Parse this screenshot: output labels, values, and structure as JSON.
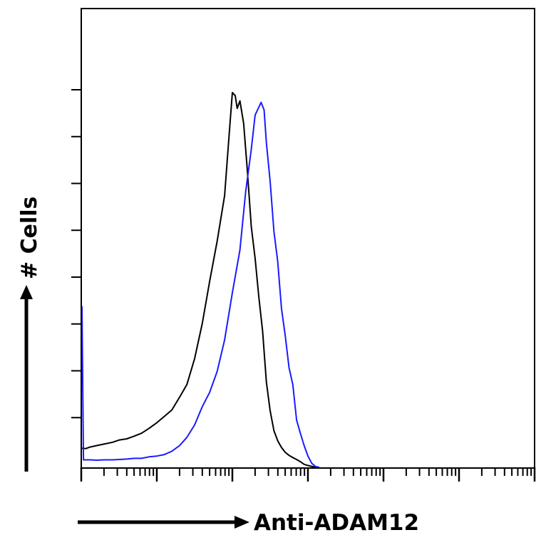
{
  "chart_data": {
    "type": "line",
    "title": "",
    "xlabel": "Anti-ADAM12",
    "ylabel": "# Cells",
    "x_scale": "log",
    "xlim": [
      1,
      1000000
    ],
    "ylim": [
      0,
      100
    ],
    "grid": false,
    "legend": "none",
    "y_minor_ticks": [
      12.5,
      25,
      37.5,
      50,
      62.5,
      75,
      87.5,
      100
    ],
    "series": [
      {
        "color": "#000000",
        "points": [
          [
            1.0,
            5.1
          ],
          [
            1.15,
            5.0
          ],
          [
            1.3,
            5.4
          ],
          [
            1.6,
            5.8
          ],
          [
            2,
            6.2
          ],
          [
            2.6,
            6.7
          ],
          [
            3.2,
            7.3
          ],
          [
            4,
            7.6
          ],
          [
            5,
            8.3
          ],
          [
            6.3,
            9.1
          ],
          [
            7.9,
            10.4
          ],
          [
            10,
            11.9
          ],
          [
            12.6,
            13.6
          ],
          [
            15.8,
            15.3
          ],
          [
            20,
            18.7
          ],
          [
            25,
            22.1
          ],
          [
            31.6,
            29.0
          ],
          [
            40,
            38.4
          ],
          [
            50,
            49.6
          ],
          [
            63,
            60.4
          ],
          [
            79,
            72.5
          ],
          [
            90,
            87.8
          ],
          [
            100,
            100
          ],
          [
            109,
            99.2
          ],
          [
            116,
            95.8
          ],
          [
            126,
            97.8
          ],
          [
            141,
            91.8
          ],
          [
            158,
            79.0
          ],
          [
            178,
            64.3
          ],
          [
            200,
            55.8
          ],
          [
            224,
            45.5
          ],
          [
            251,
            36.4
          ],
          [
            282,
            22.8
          ],
          [
            316,
            15.1
          ],
          [
            355,
            9.8
          ],
          [
            398,
            7.1
          ],
          [
            447,
            5.3
          ],
          [
            501,
            4.0
          ],
          [
            562,
            3.2
          ],
          [
            631,
            2.6
          ],
          [
            708,
            2.1
          ],
          [
            794,
            1.5
          ],
          [
            891,
            0.8
          ],
          [
            1000,
            0.5
          ],
          [
            1259,
            0
          ]
        ]
      },
      {
        "color": "#1a1aff",
        "points": [
          [
            1.0,
            43.0
          ],
          [
            1.07,
            2.0
          ],
          [
            1.3,
            2.0
          ],
          [
            1.6,
            1.9
          ],
          [
            2,
            2.0
          ],
          [
            2.6,
            2.0
          ],
          [
            3.2,
            2.1
          ],
          [
            4,
            2.2
          ],
          [
            5,
            2.4
          ],
          [
            6.3,
            2.4
          ],
          [
            7.9,
            2.8
          ],
          [
            10,
            3.0
          ],
          [
            12.6,
            3.4
          ],
          [
            15.8,
            4.3
          ],
          [
            20,
            5.8
          ],
          [
            25,
            8.0
          ],
          [
            31.6,
            11.3
          ],
          [
            40,
            16.2
          ],
          [
            50,
            20.0
          ],
          [
            63,
            25.6
          ],
          [
            79,
            34.0
          ],
          [
            100,
            46.6
          ],
          [
            126,
            58.0
          ],
          [
            150,
            73.6
          ],
          [
            178,
            84.8
          ],
          [
            200,
            94.0
          ],
          [
            224,
            96.1
          ],
          [
            240,
            97.4
          ],
          [
            263,
            95.4
          ],
          [
            282,
            86.7
          ],
          [
            316,
            76.3
          ],
          [
            355,
            63.0
          ],
          [
            398,
            55.0
          ],
          [
            447,
            42.4
          ],
          [
            501,
            35.1
          ],
          [
            562,
            26.6
          ],
          [
            631,
            22.1
          ],
          [
            708,
            12.6
          ],
          [
            794,
            9.1
          ],
          [
            891,
            5.8
          ],
          [
            1000,
            3.0
          ],
          [
            1122,
            1.1
          ],
          [
            1259,
            0.2
          ],
          [
            1413,
            0
          ]
        ]
      }
    ]
  }
}
